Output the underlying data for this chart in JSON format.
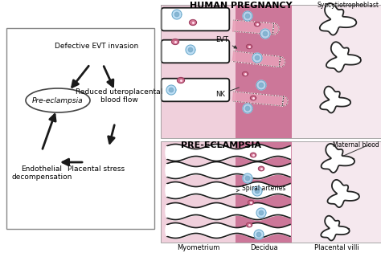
{
  "bg_color": "#ffffff",
  "right_top_title": "HUMAN PREGNANCY",
  "right_bot_title": "PRE-ECLAMPSIA",
  "syncytio_label": "Syncytiotrophoblast",
  "maternal_label": "Maternal blood",
  "myometrium_label": "Myometrium",
  "decidua_label": "Decidua",
  "placental_villi_label": "Placental villi",
  "evt_label": "EVT",
  "nk_label": "NK",
  "spiral_label": "Spiral arteries",
  "colors": {
    "myo_light": "#f2dce4",
    "myo_medium": "#e8c8d4",
    "decidua": "#c8789a",
    "decidua_dark": "#b86890",
    "villi_bg": "#f5e8ee",
    "white": "#ffffff",
    "black": "#1a1a1a",
    "cell_blue": "#b0d8f0",
    "cell_pink": "#cc6688",
    "border_gray": "#888888"
  }
}
